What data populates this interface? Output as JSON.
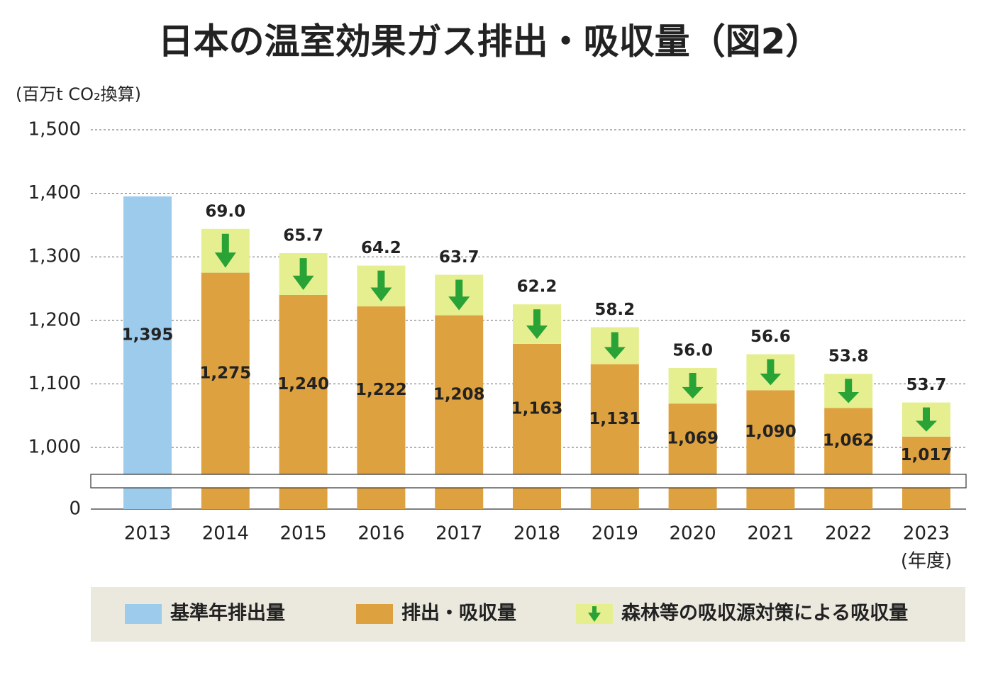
{
  "chart_data": {
    "type": "stacked_bar",
    "title": "日本の温室効果ガス排出・吸収量（図2）",
    "y_axis_label": "(百万t CO₂換算)",
    "x_axis_label": "(年度)",
    "categories": [
      "2013",
      "2014",
      "2015",
      "2016",
      "2017",
      "2018",
      "2019",
      "2020",
      "2021",
      "2022",
      "2023"
    ],
    "series": [
      {
        "name": "基準年排出量",
        "color": "#9dcbec",
        "values": [
          1395,
          null,
          null,
          null,
          null,
          null,
          null,
          null,
          null,
          null,
          null
        ],
        "value_labels": [
          "1,395",
          null,
          null,
          null,
          null,
          null,
          null,
          null,
          null,
          null,
          null
        ]
      },
      {
        "name": "排出・吸収量",
        "color": "#dea13f",
        "values": [
          null,
          1275,
          1240,
          1222,
          1208,
          1163,
          1131,
          1069,
          1090,
          1062,
          1017
        ],
        "value_labels": [
          null,
          "1,275",
          "1,240",
          "1,222",
          "1,208",
          "1,163",
          "1,131",
          "1,069",
          "1,090",
          "1,062",
          "1,017"
        ]
      },
      {
        "name": "森林等の吸収源対策による吸収量",
        "color": "#e5ef8f",
        "values": [
          null,
          69.0,
          65.7,
          64.2,
          63.7,
          62.2,
          58.2,
          56.0,
          56.6,
          53.8,
          53.7
        ],
        "value_labels": [
          null,
          "69.0",
          "65.7",
          "64.2",
          "63.7",
          "62.2",
          "58.2",
          "56.0",
          "56.6",
          "53.8",
          "53.7"
        ]
      }
    ],
    "arrow_color": "#2aa336",
    "ylim": [
      0,
      1500
    ],
    "axis_break": true,
    "yticks": [
      0,
      {
        "value": 1000,
        "label": "1,000"
      },
      {
        "value": 1100,
        "label": "1,100"
      },
      {
        "value": 1200,
        "label": "1,200"
      },
      {
        "value": 1300,
        "label": "1,300"
      },
      {
        "value": 1400,
        "label": "1,400"
      },
      {
        "value": 1500,
        "label": "1,500"
      }
    ],
    "grid": true
  }
}
